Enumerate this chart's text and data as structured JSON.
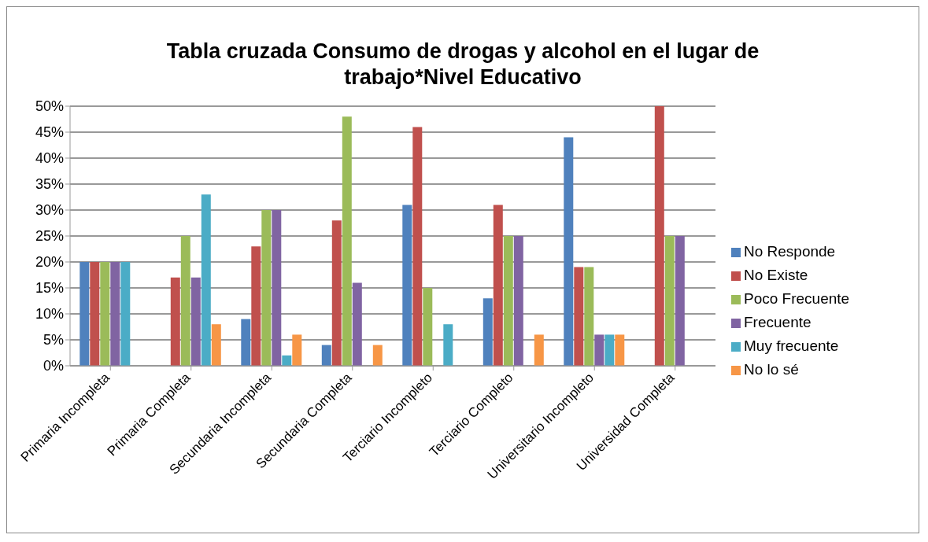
{
  "chart_data": {
    "type": "bar",
    "title": "Tabla cruzada Consumo de drogas y alcohol en el lugar de trabajo*Nivel Educativo",
    "categories": [
      "Primaria Incompleta",
      "Primaria Completa",
      "Secundaria Incompleta",
      "Secundaria Completa",
      "Terciario Incompleto",
      "Terciario Completo",
      "Universitario Incompleto",
      "Universidad Completa"
    ],
    "series": [
      {
        "name": "No Responde",
        "color": "#4f81bd",
        "values": [
          20,
          0,
          9,
          4,
          31,
          13,
          44,
          0
        ]
      },
      {
        "name": "No Existe",
        "color": "#c0504d",
        "values": [
          20,
          17,
          23,
          28,
          46,
          31,
          19,
          50
        ]
      },
      {
        "name": "Poco Frecuente",
        "color": "#9bbb59",
        "values": [
          20,
          25,
          30,
          48,
          15,
          25,
          19,
          25
        ]
      },
      {
        "name": "Frecuente",
        "color": "#8064a2",
        "values": [
          20,
          17,
          30,
          16,
          0,
          25,
          6,
          25
        ]
      },
      {
        "name": "Muy frecuente",
        "color": "#4bacc6",
        "values": [
          20,
          33,
          2,
          0,
          8,
          0,
          6,
          0
        ]
      },
      {
        "name": "No lo sé",
        "color": "#f79646",
        "values": [
          0,
          8,
          6,
          4,
          0,
          6,
          6,
          0
        ]
      }
    ],
    "ylim": [
      0,
      50
    ],
    "yticks": [
      {
        "value": 0,
        "label": "0%"
      },
      {
        "value": 5,
        "label": "5%"
      },
      {
        "value": 10,
        "label": "10%"
      },
      {
        "value": 15,
        "label": "15%"
      },
      {
        "value": 20,
        "label": "20%"
      },
      {
        "value": 25,
        "label": "25%"
      },
      {
        "value": 30,
        "label": "30%"
      },
      {
        "value": 35,
        "label": "35%"
      },
      {
        "value": 40,
        "label": "40%"
      },
      {
        "value": 45,
        "label": "45%"
      },
      {
        "value": 50,
        "label": "50%"
      }
    ],
    "grid": "y",
    "legend": "right"
  }
}
